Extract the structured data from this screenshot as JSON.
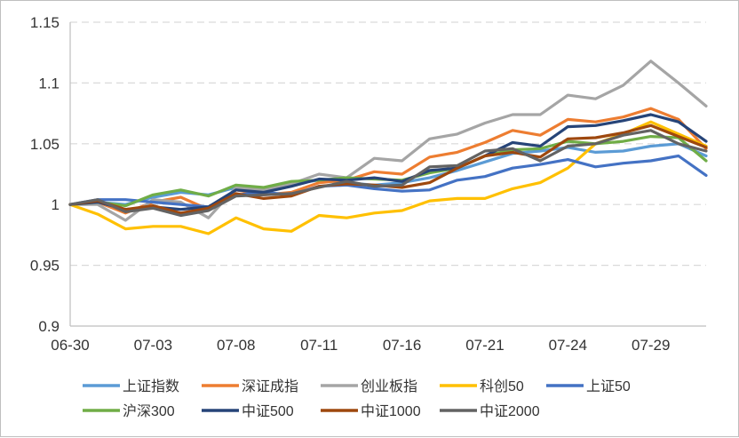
{
  "chart_data": {
    "type": "line",
    "title": "",
    "xlabel": "",
    "ylabel": "",
    "ylim": [
      0.9,
      1.15
    ],
    "yticks": [
      0.9,
      0.95,
      1,
      1.05,
      1.1,
      1.15
    ],
    "ytick_labels": [
      "0.9",
      "0.95",
      "1",
      "1.05",
      "1.1",
      "1.15"
    ],
    "x": [
      "06-30",
      "07-01",
      "07-02",
      "07-03",
      "07-04",
      "07-07",
      "07-08",
      "07-09",
      "07-10",
      "07-11",
      "07-14",
      "07-15",
      "07-16",
      "07-17",
      "07-18",
      "07-21",
      "07-22",
      "07-23",
      "07-24",
      "07-25",
      "07-28",
      "07-29",
      "07-30",
      "07-31"
    ],
    "xtick_labels": [
      "06-30",
      "07-03",
      "07-08",
      "07-11",
      "07-16",
      "07-21",
      "07-24",
      "07-29"
    ],
    "xtick_positions": [
      0,
      3,
      6,
      9,
      12,
      15,
      18,
      21
    ],
    "grid": "horizontal dashed",
    "legend_position": "bottom",
    "series": [
      {
        "name": "上证指数",
        "color": "#5b9bd5",
        "values": [
          1.0,
          1.002,
          1.0,
          1.006,
          1.01,
          1.008,
          1.014,
          1.012,
          1.017,
          1.02,
          1.018,
          1.016,
          1.018,
          1.022,
          1.028,
          1.035,
          1.042,
          1.044,
          1.047,
          1.043,
          1.044,
          1.048,
          1.05,
          1.04
        ]
      },
      {
        "name": "深证成指",
        "color": "#ed7d31",
        "values": [
          1.0,
          1.002,
          0.993,
          1.002,
          1.006,
          0.996,
          1.012,
          1.008,
          1.01,
          1.018,
          1.02,
          1.027,
          1.025,
          1.039,
          1.043,
          1.051,
          1.061,
          1.057,
          1.07,
          1.068,
          1.072,
          1.079,
          1.07,
          1.046
        ]
      },
      {
        "name": "创业板指",
        "color": "#a5a5a5",
        "values": [
          1.0,
          1.0,
          0.987,
          1.004,
          1.002,
          0.989,
          1.014,
          1.012,
          1.017,
          1.025,
          1.022,
          1.038,
          1.036,
          1.054,
          1.058,
          1.067,
          1.074,
          1.074,
          1.09,
          1.087,
          1.098,
          1.118,
          1.1,
          1.081
        ]
      },
      {
        "name": "科创50",
        "color": "#ffc000",
        "values": [
          1.0,
          0.992,
          0.98,
          0.982,
          0.982,
          0.976,
          0.989,
          0.98,
          0.978,
          0.991,
          0.989,
          0.993,
          0.995,
          1.003,
          1.005,
          1.005,
          1.013,
          1.018,
          1.03,
          1.05,
          1.058,
          1.068,
          1.058,
          1.048
        ]
      },
      {
        "name": "上证50",
        "color": "#4472c4",
        "values": [
          1.0,
          1.004,
          1.004,
          1.002,
          1.0,
          0.998,
          1.008,
          1.01,
          1.008,
          1.015,
          1.016,
          1.013,
          1.011,
          1.012,
          1.02,
          1.023,
          1.03,
          1.033,
          1.037,
          1.031,
          1.034,
          1.036,
          1.04,
          1.024
        ]
      },
      {
        "name": "沪深300",
        "color": "#70ad47",
        "values": [
          1.0,
          1.002,
          0.999,
          1.008,
          1.012,
          1.007,
          1.016,
          1.014,
          1.019,
          1.02,
          1.022,
          1.021,
          1.02,
          1.026,
          1.03,
          1.04,
          1.045,
          1.046,
          1.052,
          1.05,
          1.052,
          1.056,
          1.055,
          1.036
        ]
      },
      {
        "name": "中证500",
        "color": "#264478",
        "values": [
          1.0,
          1.002,
          0.996,
          0.998,
          0.996,
          0.998,
          1.012,
          1.01,
          1.015,
          1.021,
          1.02,
          1.022,
          1.019,
          1.028,
          1.03,
          1.04,
          1.051,
          1.048,
          1.064,
          1.065,
          1.069,
          1.074,
          1.068,
          1.052
        ]
      },
      {
        "name": "中证1000",
        "color": "#9e480e",
        "values": [
          1.0,
          1.003,
          0.996,
          0.999,
          0.993,
          0.997,
          1.009,
          1.005,
          1.007,
          1.015,
          1.017,
          1.016,
          1.014,
          1.018,
          1.03,
          1.04,
          1.043,
          1.039,
          1.054,
          1.055,
          1.059,
          1.065,
          1.056,
          1.047
        ]
      },
      {
        "name": "中证2000",
        "color": "#636363",
        "values": [
          1.0,
          1.004,
          0.994,
          0.997,
          0.991,
          0.995,
          1.007,
          1.008,
          1.009,
          1.014,
          1.019,
          1.015,
          1.016,
          1.031,
          1.032,
          1.044,
          1.046,
          1.036,
          1.048,
          1.05,
          1.057,
          1.061,
          1.05,
          1.044
        ]
      }
    ]
  }
}
